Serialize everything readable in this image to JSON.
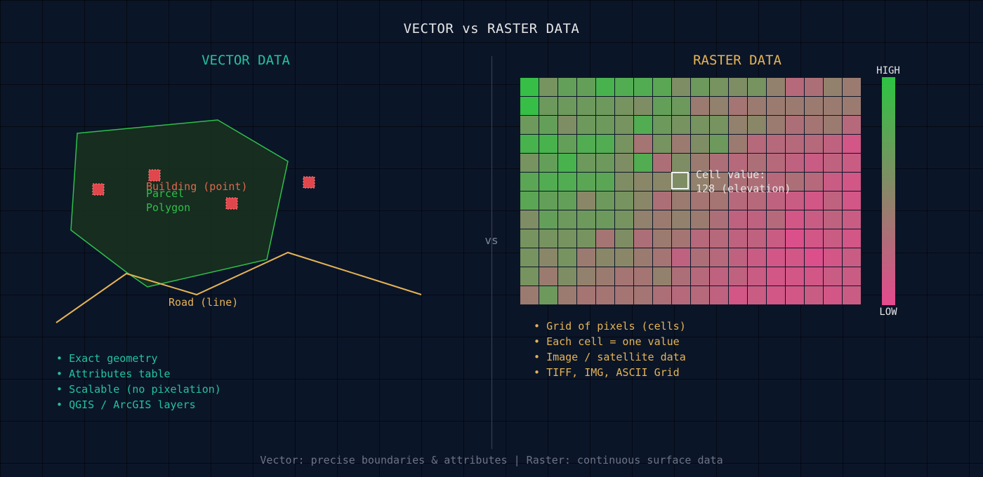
{
  "title": "VECTOR vs RASTER DATA",
  "vector": {
    "heading": "VECTOR DATA",
    "parcel_label_line1": "Parcel",
    "parcel_label_line2": "Polygon",
    "building_label": "Building (point)",
    "road_label": "Road (line)",
    "bullets": [
      "Exact geometry",
      "Attributes table",
      "Scalable (no pixelation)",
      "QGIS / ArcGIS layers"
    ],
    "colors": {
      "polygon_stroke": "#2fbf4a",
      "polygon_fill": "#17301f",
      "point": "#e0474c",
      "road": "#e5b454",
      "text": "#22c3a0"
    }
  },
  "divider": {
    "label": "vs"
  },
  "raster": {
    "heading": "RASTER DATA",
    "cell_value_line1": "Cell value:",
    "cell_value_line2": "128 (elevation)",
    "legend_high": "HIGH",
    "legend_low": "LOW",
    "bullets": [
      "Grid of pixels (cells)",
      "Each cell = one value",
      "Image / satellite data",
      "TIFF, IMG, ASCII Grid"
    ],
    "colors": {
      "high": "#2dc442",
      "low": "#e44a8e",
      "text": "#e5b454"
    },
    "grid": [
      [
        0.05,
        0.4,
        0.3,
        0.3,
        0.15,
        0.2,
        0.2,
        0.25,
        0.45,
        0.35,
        0.4,
        0.45,
        0.4,
        0.55,
        0.75,
        0.7,
        0.55,
        0.6
      ],
      [
        0.05,
        0.35,
        0.35,
        0.35,
        0.35,
        0.4,
        0.45,
        0.3,
        0.35,
        0.6,
        0.55,
        0.65,
        0.6,
        0.6,
        0.6,
        0.6,
        0.6,
        0.6
      ],
      [
        0.35,
        0.3,
        0.45,
        0.35,
        0.35,
        0.4,
        0.2,
        0.35,
        0.4,
        0.4,
        0.4,
        0.55,
        0.5,
        0.6,
        0.7,
        0.65,
        0.6,
        0.75
      ],
      [
        0.15,
        0.15,
        0.3,
        0.2,
        0.2,
        0.4,
        0.65,
        0.4,
        0.6,
        0.45,
        0.35,
        0.6,
        0.75,
        0.75,
        0.75,
        0.75,
        0.8,
        0.9
      ],
      [
        0.4,
        0.3,
        0.15,
        0.35,
        0.35,
        0.45,
        0.2,
        0.7,
        0.45,
        0.6,
        0.7,
        0.75,
        0.7,
        0.75,
        0.8,
        0.85,
        0.8,
        0.85
      ],
      [
        0.25,
        0.2,
        0.2,
        0.25,
        0.25,
        0.45,
        0.5,
        0.5,
        0.45,
        0.55,
        0.6,
        0.7,
        0.7,
        0.75,
        0.7,
        0.75,
        0.85,
        0.9
      ],
      [
        0.25,
        0.3,
        0.3,
        0.5,
        0.35,
        0.4,
        0.5,
        0.7,
        0.6,
        0.65,
        0.65,
        0.75,
        0.75,
        0.8,
        0.85,
        0.9,
        0.8,
        0.9
      ],
      [
        0.45,
        0.3,
        0.35,
        0.35,
        0.35,
        0.4,
        0.55,
        0.6,
        0.55,
        0.6,
        0.7,
        0.8,
        0.8,
        0.75,
        0.9,
        0.85,
        0.8,
        0.85
      ],
      [
        0.4,
        0.4,
        0.4,
        0.4,
        0.65,
        0.45,
        0.7,
        0.6,
        0.65,
        0.75,
        0.75,
        0.8,
        0.8,
        0.85,
        0.95,
        0.9,
        0.85,
        0.9
      ],
      [
        0.4,
        0.5,
        0.4,
        0.6,
        0.5,
        0.5,
        0.6,
        0.65,
        0.8,
        0.7,
        0.75,
        0.8,
        0.85,
        0.9,
        0.9,
        0.95,
        0.9,
        0.85
      ],
      [
        0.4,
        0.6,
        0.45,
        0.55,
        0.6,
        0.65,
        0.65,
        0.55,
        0.7,
        0.75,
        0.8,
        0.8,
        0.85,
        0.9,
        0.9,
        0.9,
        0.85,
        0.85
      ],
      [
        0.6,
        0.35,
        0.6,
        0.65,
        0.65,
        0.65,
        0.65,
        0.7,
        0.75,
        0.75,
        0.8,
        0.9,
        0.85,
        0.9,
        0.9,
        0.85,
        0.9,
        0.85
      ]
    ]
  },
  "footer": "Vector: precise boundaries & attributes | Raster: continuous surface data"
}
